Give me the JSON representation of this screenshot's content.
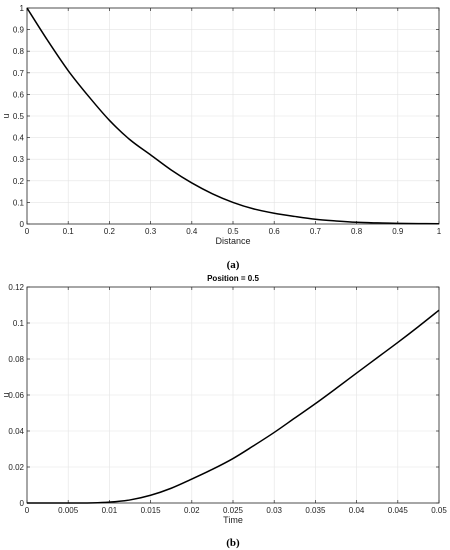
{
  "chart_data": [
    {
      "type": "line",
      "title": "",
      "caption": "(a)",
      "xlabel": "Distance",
      "ylabel": "u",
      "xlim": [
        0,
        1
      ],
      "ylim": [
        0,
        1
      ],
      "grid": true,
      "line_color": "#000000",
      "x_ticks": [
        0,
        0.1,
        0.2,
        0.3,
        0.4,
        0.5,
        0.6,
        0.7,
        0.8,
        0.9,
        1
      ],
      "x_tick_labels": [
        "0",
        "0.1",
        "0.2",
        "0.3",
        "0.4",
        "0.5",
        "0.6",
        "0.7",
        "0.8",
        "0.9",
        "1"
      ],
      "y_ticks": [
        0,
        0.1,
        0.2,
        0.3,
        0.4,
        0.5,
        0.6,
        0.7,
        0.8,
        0.9,
        1
      ],
      "y_tick_labels": [
        "0",
        "0.1",
        "0.2",
        "0.3",
        "0.4",
        "0.5",
        "0.6",
        "0.7",
        "0.8",
        "0.9",
        "1"
      ],
      "series": [
        {
          "x": [
            0,
            0.05,
            0.1,
            0.15,
            0.2,
            0.25,
            0.3,
            0.35,
            0.4,
            0.45,
            0.5,
            0.55,
            0.6,
            0.65,
            0.7,
            0.75,
            0.8,
            0.85,
            0.9,
            0.95,
            1
          ],
          "y": [
            1.0,
            0.85,
            0.71,
            0.59,
            0.48,
            0.39,
            0.32,
            0.25,
            0.19,
            0.14,
            0.1,
            0.07,
            0.05,
            0.035,
            0.022,
            0.014,
            0.008,
            0.005,
            0.003,
            0.002,
            0.001
          ]
        }
      ]
    },
    {
      "type": "line",
      "title": "Position = 0.5",
      "caption": "(b)",
      "xlabel": "Time",
      "ylabel": "u",
      "xlim": [
        0,
        0.05
      ],
      "ylim": [
        0,
        0.12
      ],
      "grid": true,
      "line_color": "#000000",
      "x_ticks": [
        0,
        0.005,
        0.01,
        0.015,
        0.02,
        0.025,
        0.03,
        0.035,
        0.04,
        0.045,
        0.05
      ],
      "x_tick_labels": [
        "0",
        "0.005",
        "0.01",
        "0.015",
        "0.02",
        "0.025",
        "0.03",
        "0.035",
        "0.04",
        "0.045",
        "0.05"
      ],
      "y_ticks": [
        0,
        0.02,
        0.04,
        0.06,
        0.08,
        0.1,
        0.12
      ],
      "y_tick_labels": [
        "0",
        "0.02",
        "0.04",
        "0.06",
        "0.08",
        "0.1",
        "0.12"
      ],
      "series": [
        {
          "x": [
            0,
            0.005,
            0.008,
            0.01,
            0.0125,
            0.015,
            0.0175,
            0.02,
            0.0225,
            0.025,
            0.0275,
            0.03,
            0.0325,
            0.035,
            0.0375,
            0.04,
            0.0425,
            0.045,
            0.0475,
            0.05
          ],
          "y": [
            0,
            0,
            0.0001,
            0.0005,
            0.0017,
            0.0043,
            0.0082,
            0.0133,
            0.0187,
            0.0247,
            0.0318,
            0.0392,
            0.0472,
            0.0552,
            0.0636,
            0.0722,
            0.0807,
            0.0892,
            0.098,
            0.1071
          ]
        }
      ]
    }
  ]
}
